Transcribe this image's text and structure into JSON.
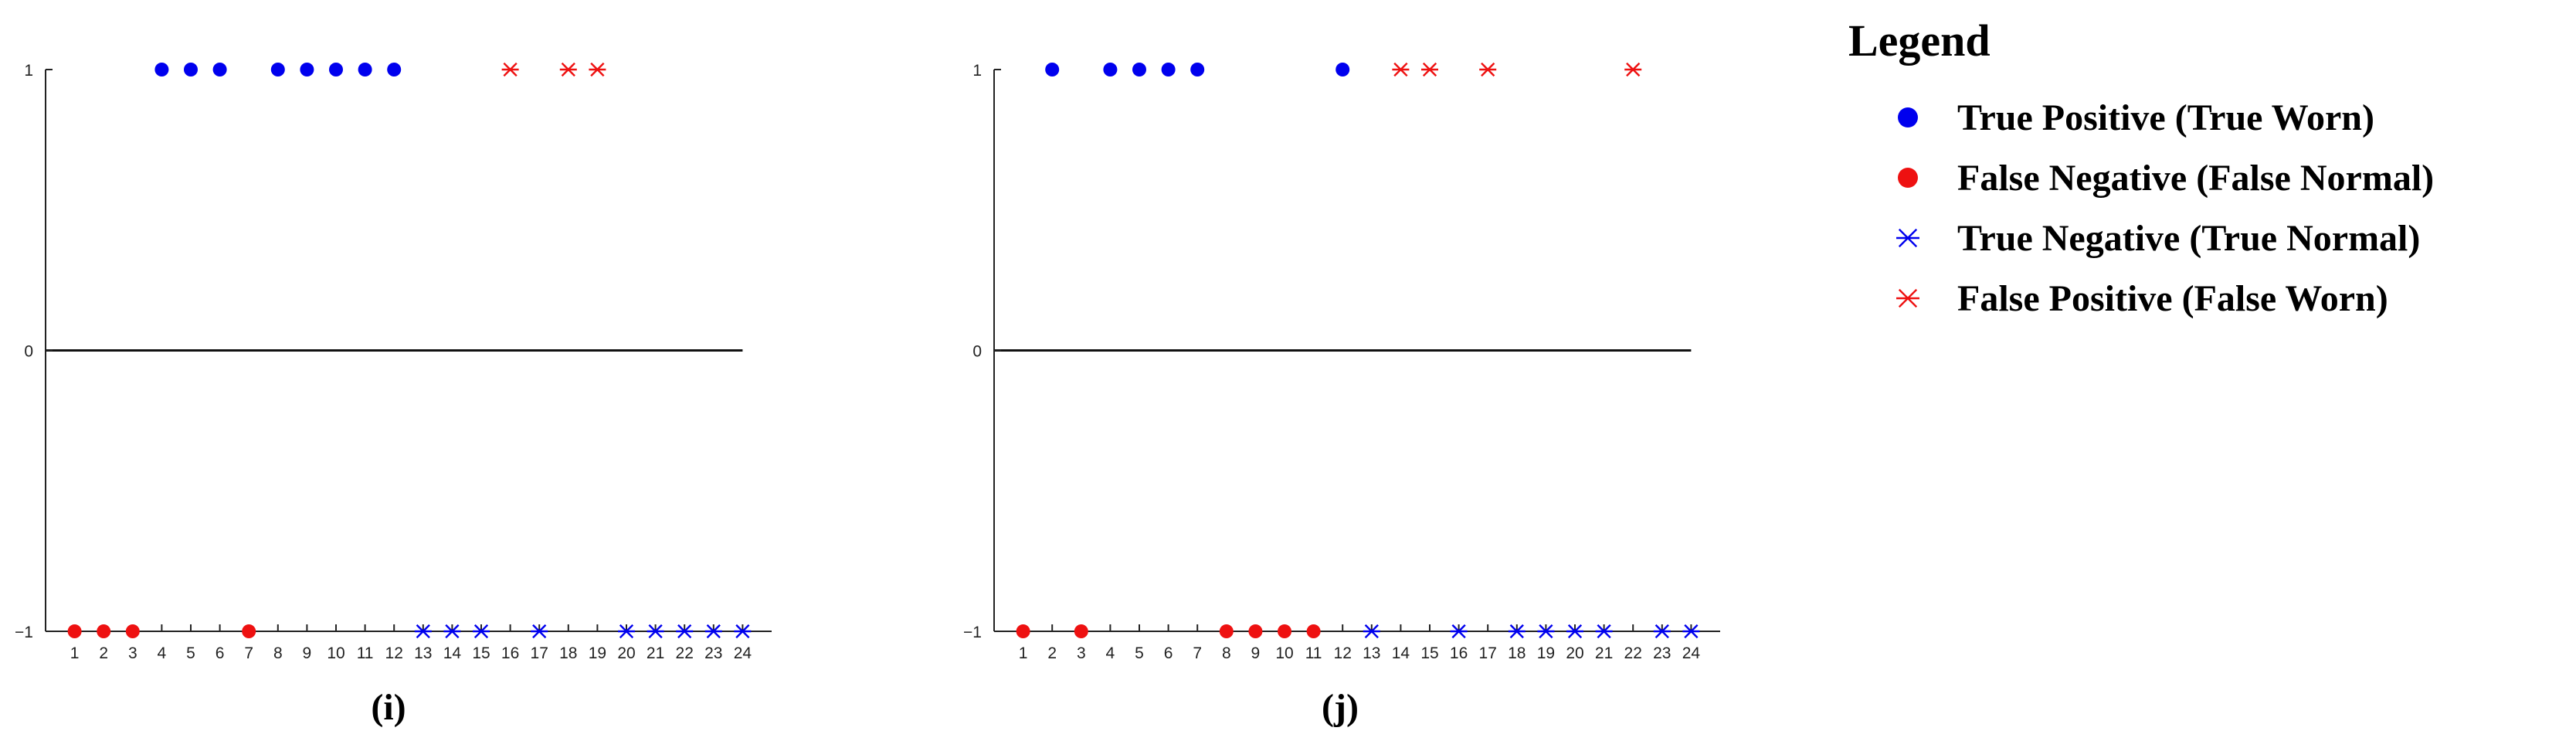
{
  "chart_data": [
    {
      "type": "scatter",
      "subplot_label": "(i)",
      "x_ticks": [
        1,
        2,
        3,
        4,
        5,
        6,
        7,
        8,
        9,
        10,
        11,
        12,
        13,
        14,
        15,
        16,
        17,
        18,
        19,
        20,
        21,
        22,
        23,
        24
      ],
      "y_ticks": [
        -1,
        0,
        1
      ],
      "y_tick_labels": [
        "−1",
        "0",
        "1"
      ],
      "xlim": [
        0,
        25
      ],
      "ylim": [
        -1,
        1
      ],
      "zero_line": true,
      "series": [
        {
          "key": "true_positive",
          "x": [
            4,
            5,
            6,
            8,
            9,
            10,
            11,
            12
          ],
          "y": [
            1,
            1,
            1,
            1,
            1,
            1,
            1,
            1
          ]
        },
        {
          "key": "false_negative",
          "x": [
            1,
            2,
            3,
            7
          ],
          "y": [
            -1,
            -1,
            -1,
            -1
          ]
        },
        {
          "key": "true_negative",
          "x": [
            13,
            14,
            15,
            17,
            20,
            21,
            22,
            23,
            24
          ],
          "y": [
            -1,
            -1,
            -1,
            -1,
            -1,
            -1,
            -1,
            -1,
            -1
          ]
        },
        {
          "key": "false_positive",
          "x": [
            16,
            18,
            19
          ],
          "y": [
            1,
            1,
            1
          ]
        }
      ]
    },
    {
      "type": "scatter",
      "subplot_label": "(j)",
      "x_ticks": [
        1,
        2,
        3,
        4,
        5,
        6,
        7,
        8,
        9,
        10,
        11,
        12,
        13,
        14,
        15,
        16,
        17,
        18,
        19,
        20,
        21,
        22,
        23,
        24
      ],
      "y_ticks": [
        -1,
        0,
        1
      ],
      "y_tick_labels": [
        "−1",
        "0",
        "1"
      ],
      "xlim": [
        0,
        25
      ],
      "ylim": [
        -1,
        1
      ],
      "zero_line": true,
      "series": [
        {
          "key": "true_positive",
          "x": [
            2,
            4,
            5,
            6,
            7,
            12
          ],
          "y": [
            1,
            1,
            1,
            1,
            1,
            1
          ]
        },
        {
          "key": "false_negative",
          "x": [
            1,
            3,
            8,
            9,
            10,
            11
          ],
          "y": [
            -1,
            -1,
            -1,
            -1,
            -1,
            -1
          ]
        },
        {
          "key": "true_negative",
          "x": [
            13,
            16,
            18,
            19,
            20,
            21,
            23,
            24
          ],
          "y": [
            -1,
            -1,
            -1,
            -1,
            -1,
            -1,
            -1,
            -1
          ]
        },
        {
          "key": "false_positive",
          "x": [
            14,
            15,
            17,
            22
          ],
          "y": [
            1,
            1,
            1,
            1
          ]
        }
      ]
    }
  ],
  "legend": {
    "title": "Legend",
    "placement": "right",
    "items": [
      {
        "key": "true_positive",
        "label": "True Positive (True Worn)",
        "marker": "dot",
        "color": "#0000ee"
      },
      {
        "key": "false_negative",
        "label": "False Negative (False Normal)",
        "marker": "dot",
        "color": "#ee1111"
      },
      {
        "key": "true_negative",
        "label": "True Negative (True Normal)",
        "marker": "asterisk",
        "color": "#0000ee"
      },
      {
        "key": "false_positive",
        "label": "False Positive (False Worn)",
        "marker": "asterisk",
        "color": "#ee1111"
      }
    ]
  }
}
